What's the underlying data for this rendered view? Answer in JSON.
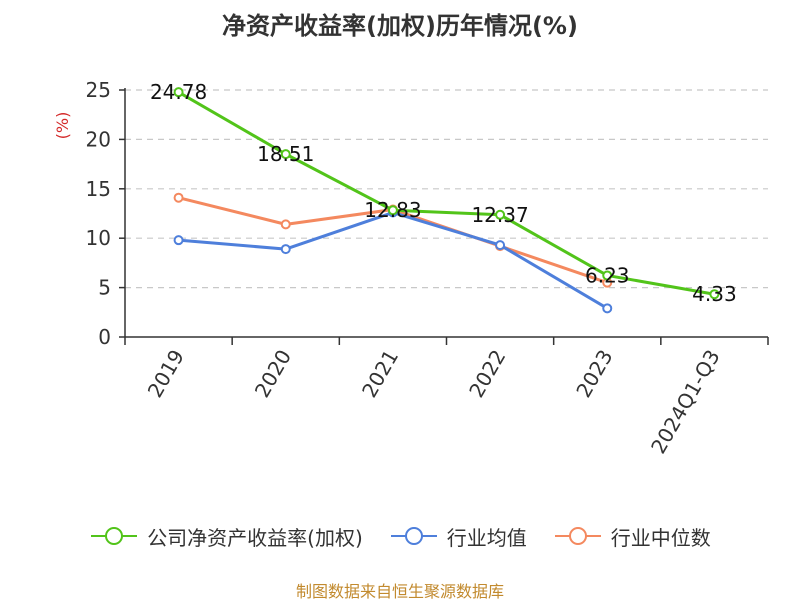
{
  "title": "净资产收益率(加权)历年情况(%)",
  "source": "制图数据来自恒生聚源数据库",
  "colors": {
    "company": "#52c41a",
    "industry_avg": "#4e7fdb",
    "industry_median": "#f4895f",
    "axis": "#333333",
    "grid": "#c8c8c8",
    "ylabel": "#d42a2a"
  },
  "chart_data": {
    "type": "line",
    "categories": [
      "2019",
      "2020",
      "2021",
      "2022",
      "2023",
      "2024Q1-Q3"
    ],
    "ylabel": "(%)",
    "ylim": [
      0,
      25
    ],
    "yticks": [
      0,
      5,
      10,
      15,
      20,
      25
    ],
    "grid": true,
    "legend_position": "bottom",
    "series": [
      {
        "name": "公司净资产收益率(加权)",
        "color_key": "company",
        "values": [
          24.78,
          18.51,
          12.83,
          12.37,
          6.23,
          4.33
        ],
        "labels": [
          "24.78",
          "18.51",
          "12.83",
          "12.37",
          "6.23",
          "4.33"
        ]
      },
      {
        "name": "行业均值",
        "color_key": "industry_avg",
        "values": [
          9.8,
          8.9,
          12.6,
          9.3,
          2.9,
          null
        ]
      },
      {
        "name": "行业中位数",
        "color_key": "industry_median",
        "values": [
          14.1,
          11.4,
          12.9,
          9.2,
          5.5,
          null
        ]
      }
    ]
  }
}
